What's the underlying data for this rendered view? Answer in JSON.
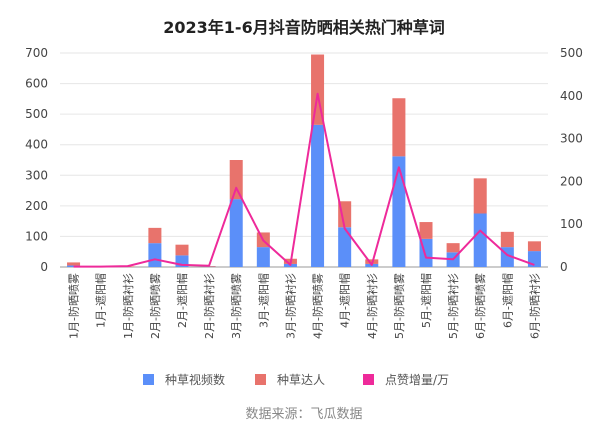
{
  "chart_data": {
    "type": "bar",
    "title": "2023年1-6月抖音防晒相关热门种草词",
    "categories": [
      "1月-防晒喷雾",
      "1月-遮阳帽",
      "1月-防晒衬衫",
      "2月-防晒喷雾",
      "2月-遮阳帽",
      "2月-防晒衬衫",
      "3月-防晒喷雾",
      "3月-遮阳帽",
      "3月-防晒衬衫",
      "4月-防晒喷雾",
      "4月-遮阳帽",
      "4月-防晒衬衫",
      "5月-防晒喷雾",
      "5月-遮阳帽",
      "5月-防晒衬衫",
      "6月-防晒喷雾",
      "6月-遮阳帽",
      "6月-防晒衬衫"
    ],
    "stacked": true,
    "series": [
      {
        "name": "种草视频数",
        "kind": "bar",
        "axis": "left",
        "color": "#5b8ff9",
        "values": [
          5,
          1,
          0,
          78,
          38,
          1,
          222,
          65,
          10,
          465,
          130,
          10,
          362,
          92,
          48,
          175,
          65,
          52
        ]
      },
      {
        "name": "种草达人",
        "kind": "bar",
        "axis": "left",
        "color": "#e8736c",
        "values": [
          10,
          2,
          2,
          50,
          35,
          2,
          128,
          48,
          17,
          230,
          85,
          15,
          190,
          55,
          30,
          115,
          50,
          32
        ]
      },
      {
        "name": "点赞增量/万",
        "kind": "line",
        "axis": "right",
        "color": "#ee2a9a",
        "values": [
          1,
          1,
          2,
          18,
          5,
          3,
          185,
          62,
          5,
          405,
          90,
          5,
          233,
          22,
          18,
          85,
          28,
          5
        ]
      }
    ],
    "ylim_left": [
      0,
      700
    ],
    "yticks_left": [
      0,
      100,
      200,
      300,
      400,
      500,
      600,
      700
    ],
    "ylim_right": [
      0,
      500
    ],
    "yticks_right": [
      0,
      100,
      200,
      300,
      400,
      500
    ],
    "grid": true,
    "legend_position": "bottom"
  },
  "source_text": "数据来源：飞瓜数据"
}
